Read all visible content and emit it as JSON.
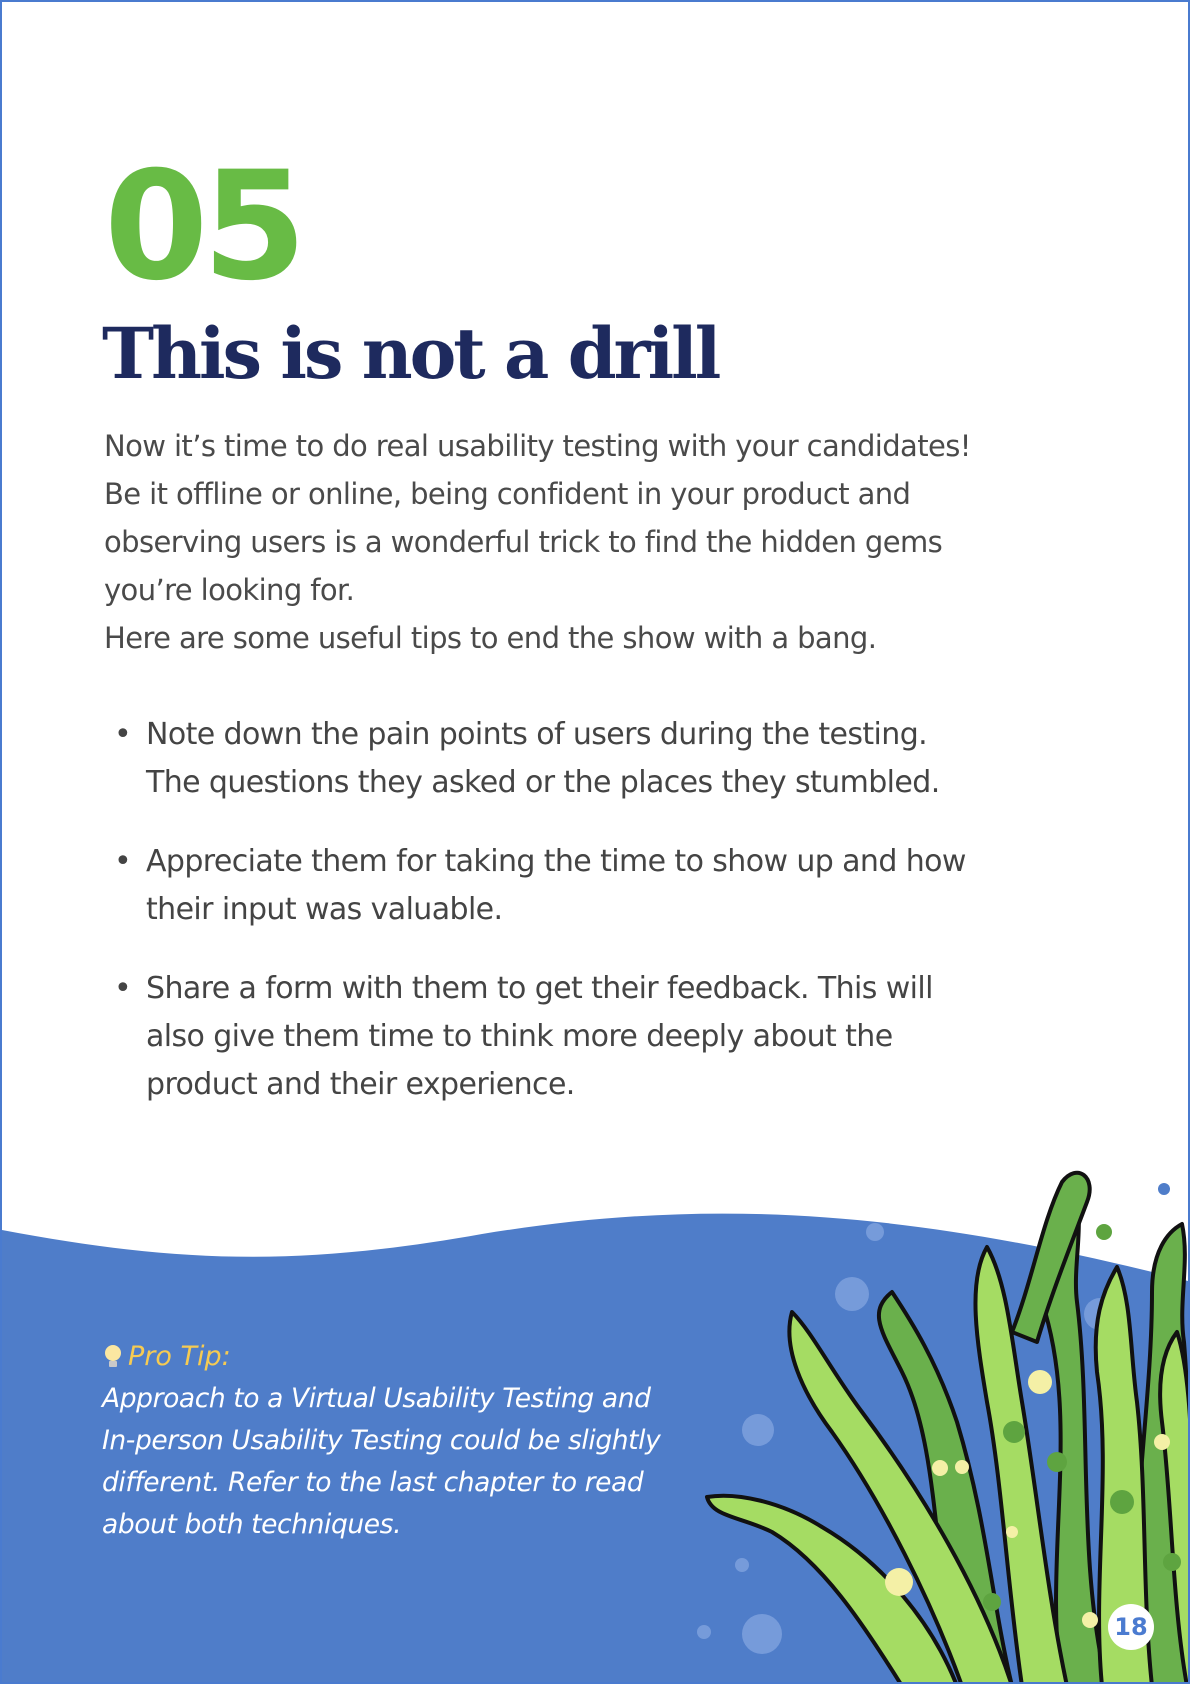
{
  "chapter": {
    "number": "05",
    "title": "This is not a drill"
  },
  "intro": [
    "Now it’s time to do real usability testing with your candidates!",
    "Be it offline or online, being confident in your product and",
    "observing users is a wonderful trick to find the hidden gems",
    "you’re looking for.",
    "Here are some useful tips to end the show with a bang."
  ],
  "tips": [
    {
      "bullet": "•",
      "lines": [
        "Note down the pain points of users during the testing.",
        "The questions they asked or the places they stumbled."
      ]
    },
    {
      "bullet": "•",
      "lines": [
        " Appreciate them for taking the time to show up and how",
        "their input was valuable."
      ]
    },
    {
      "bullet": "•",
      "lines": [
        "Share a form with them to get their feedback. This will",
        "also give them time to think more deeply about the",
        "product and their experience."
      ]
    }
  ],
  "pro_tip": {
    "heading": "Pro Tip:",
    "icon": "lightbulb-icon",
    "lines": [
      "Approach to a Virtual Usability Testing and",
      "In-person Usability Testing could be slightly",
      "different. Refer to the last chapter to read",
      "about both techniques."
    ]
  },
  "page_number": "18",
  "colors": {
    "accent_green": "#68bb45",
    "title_navy": "#1e2a5e",
    "wave_blue": "#4f7dc9",
    "tip_yellow": "#f6cb52",
    "seaweed_light": "#a5dc63",
    "seaweed_dark": "#6ab04c"
  },
  "decoration": {
    "illustration": "seaweed-illustration",
    "bubbles": "bubble-icons"
  }
}
